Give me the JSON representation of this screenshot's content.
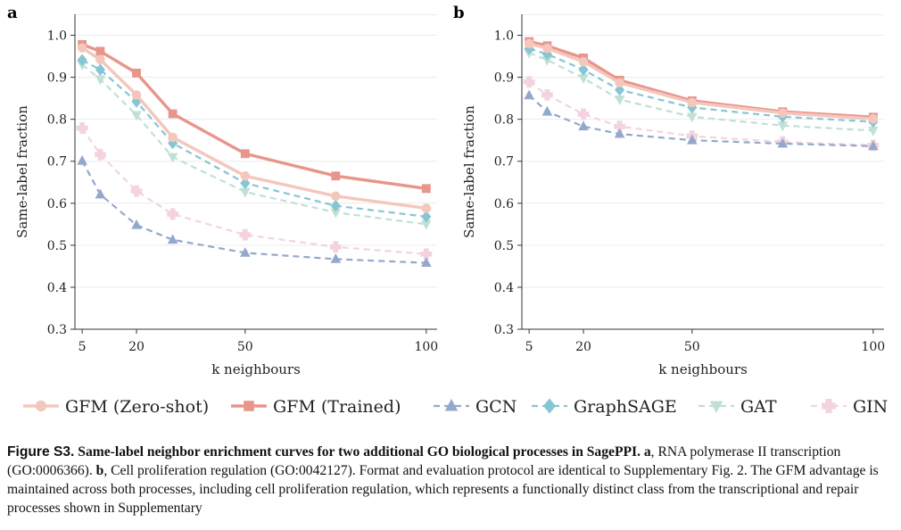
{
  "figure": {
    "panels": [
      {
        "letter": "a"
      },
      {
        "letter": "b"
      }
    ],
    "legend": [
      {
        "label": "GFM (Zero-shot)",
        "color": "#f4c7bd",
        "marker": "circle",
        "dash": "solid"
      },
      {
        "label": "GFM (Trained)",
        "color": "#e8958b",
        "marker": "square",
        "dash": "solid"
      },
      {
        "label": "GCN",
        "color": "#94a8cd",
        "marker": "triangle-up",
        "dash": "dashed"
      },
      {
        "label": "GraphSAGE",
        "color": "#86c6d4",
        "marker": "diamond",
        "dash": "dashed"
      },
      {
        "label": "GAT",
        "color": "#bfe0d5",
        "marker": "triangle-down",
        "dash": "dashed"
      },
      {
        "label": "GIN",
        "color": "#f3d3df",
        "marker": "plus",
        "dash": "dashed"
      }
    ]
  },
  "chart_data": [
    {
      "type": "line",
      "panel": "a",
      "xlabel": "k neighbours",
      "ylabel": "Same-label fraction",
      "xticks": [
        5,
        20,
        50,
        100
      ],
      "yticks": [
        0.3,
        0.4,
        0.5,
        0.6,
        0.7,
        0.8,
        0.9,
        1.0
      ],
      "ylim": [
        0.3,
        1.05
      ],
      "xlim": [
        3,
        103
      ],
      "grid": "horizontal",
      "x": [
        5,
        10,
        20,
        30,
        50,
        75,
        100
      ],
      "series": [
        {
          "name": "GFM (Zero-shot)",
          "values": [
            0.97,
            0.942,
            0.858,
            0.757,
            0.665,
            0.617,
            0.588
          ]
        },
        {
          "name": "GFM (Trained)",
          "values": [
            0.978,
            0.962,
            0.91,
            0.813,
            0.718,
            0.665,
            0.635
          ]
        },
        {
          "name": "GCN",
          "values": [
            0.701,
            0.621,
            0.548,
            0.513,
            0.482,
            0.467,
            0.458
          ]
        },
        {
          "name": "GraphSAGE",
          "values": [
            0.941,
            0.918,
            0.842,
            0.743,
            0.648,
            0.594,
            0.568
          ]
        },
        {
          "name": "GAT",
          "values": [
            0.93,
            0.895,
            0.81,
            0.71,
            0.627,
            0.578,
            0.55
          ]
        },
        {
          "name": "GIN",
          "values": [
            0.779,
            0.716,
            0.629,
            0.574,
            0.525,
            0.496,
            0.479
          ]
        }
      ]
    },
    {
      "type": "line",
      "panel": "b",
      "xlabel": "k neighbours",
      "ylabel": "Same-label fraction",
      "xticks": [
        5,
        20,
        50,
        100
      ],
      "yticks": [
        0.3,
        0.4,
        0.5,
        0.6,
        0.7,
        0.8,
        0.9,
        1.0
      ],
      "ylim": [
        0.3,
        1.05
      ],
      "xlim": [
        3,
        103
      ],
      "grid": "horizontal",
      "x": [
        5,
        10,
        20,
        30,
        50,
        75,
        100
      ],
      "series": [
        {
          "name": "GFM (Zero-shot)",
          "values": [
            0.98,
            0.969,
            0.937,
            0.887,
            0.84,
            0.815,
            0.801
          ]
        },
        {
          "name": "GFM (Trained)",
          "values": [
            0.985,
            0.975,
            0.946,
            0.893,
            0.844,
            0.818,
            0.805
          ]
        },
        {
          "name": "GCN",
          "values": [
            0.857,
            0.818,
            0.783,
            0.765,
            0.75,
            0.742,
            0.736
          ]
        },
        {
          "name": "GraphSAGE",
          "values": [
            0.968,
            0.955,
            0.918,
            0.87,
            0.828,
            0.806,
            0.794
          ]
        },
        {
          "name": "GAT",
          "values": [
            0.958,
            0.941,
            0.898,
            0.847,
            0.806,
            0.785,
            0.773
          ]
        },
        {
          "name": "GIN",
          "values": [
            0.889,
            0.858,
            0.812,
            0.783,
            0.76,
            0.746,
            0.738
          ]
        }
      ]
    }
  ],
  "caption": {
    "fig_label": "Figure S3.",
    "title": "Same-label neighbor enrichment curves for two additional GO biological processes in SagePPI.",
    "a_letter": "a",
    "a_text": ", RNA polymerase II transcription (GO:0006366).",
    "b_letter": "b",
    "b_text": ", Cell proliferation regulation (GO:0042127). Format and evaluation protocol are identical to Supplementary Fig. 2. The GFM advantage is maintained across both processes, including cell proliferation regulation, which represents a functionally distinct class from the transcriptional and repair processes shown in Supplementary"
  }
}
